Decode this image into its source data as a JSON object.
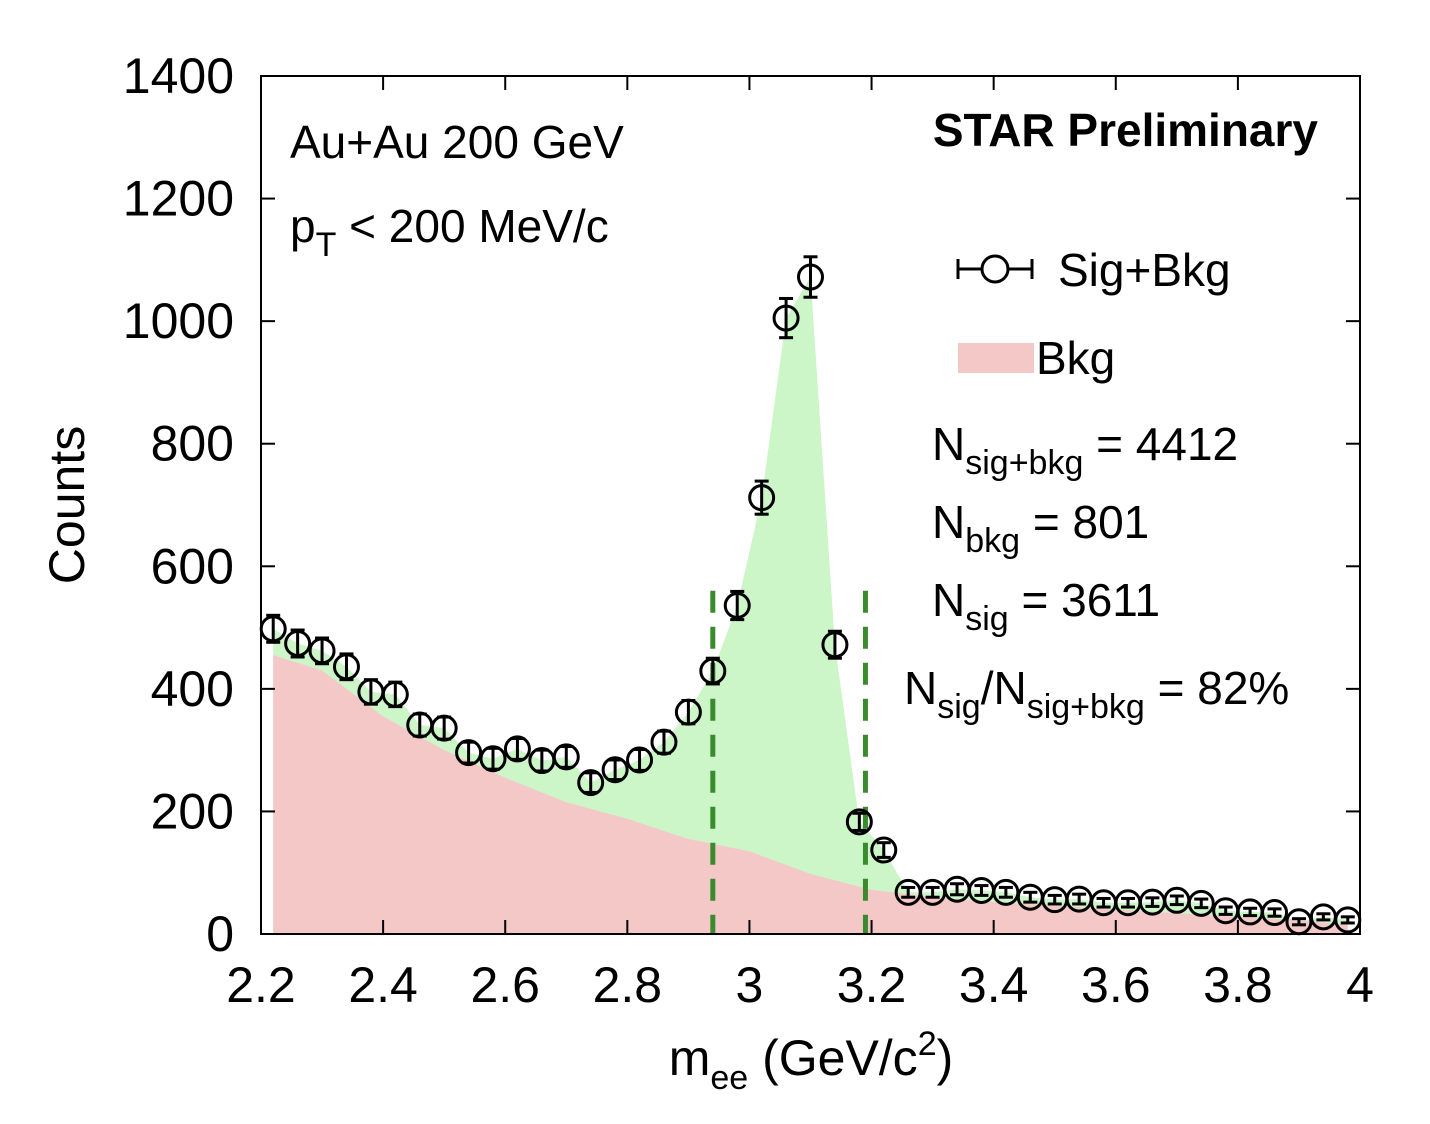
{
  "chart_data": {
    "type": "scatter",
    "xlabel": {
      "main": "m",
      "sub": "ee",
      "rest": " (GeV/c",
      "sup": "2",
      "end": ")"
    },
    "ylabel": "Counts",
    "xlim": [
      2.2,
      4.0
    ],
    "ylim": [
      0,
      1400
    ],
    "xticks": [
      "2.2",
      "2.4",
      "2.6",
      "2.8",
      "3",
      "3.2",
      "3.4",
      "3.6",
      "3.8",
      "4"
    ],
    "xtick_values": [
      2.2,
      2.4,
      2.6,
      2.8,
      3.0,
      3.2,
      3.4,
      3.6,
      3.8,
      4.0
    ],
    "yticks": [
      "0",
      "200",
      "400",
      "600",
      "800",
      "1000",
      "1200",
      "1400"
    ],
    "ytick_values": [
      0,
      200,
      400,
      600,
      800,
      1000,
      1200,
      1400
    ],
    "annotations": {
      "collision": "Au+Au 200 GeV",
      "pt_main": "p",
      "pt_sub": "T",
      "pt_rest": " < 200 MeV/c",
      "preliminary": "STAR Preliminary",
      "n_sigbkg_main": "N",
      "n_sigbkg_sub": "sig+bkg",
      "n_sigbkg_rest": " = 4412",
      "n_bkg_main": "N",
      "n_bkg_sub": "bkg",
      "n_bkg_rest": " = 801",
      "n_sig_main": "N",
      "n_sig_sub": "sig",
      "n_sig_rest": " = 3611",
      "ratio_main1": "N",
      "ratio_sub1": "sig",
      "ratio_mid": "/N",
      "ratio_sub2": "sig+bkg",
      "ratio_rest": " = 82%"
    },
    "legend": {
      "placement": "top-right",
      "entries": [
        "Sig+Bkg",
        "Bkg"
      ]
    },
    "colors": {
      "signal_fill": "#ccf5c8",
      "background_fill": "#f5c8c8",
      "markers": "#000000",
      "window_lines": "#3a8a2e"
    },
    "mass_window": [
      2.94,
      3.19
    ],
    "series": [
      {
        "name": "Sig+Bkg",
        "style": "open-circle-with-error-bars",
        "x": [
          2.22,
          2.26,
          2.3,
          2.34,
          2.38,
          2.42,
          2.46,
          2.5,
          2.54,
          2.58,
          2.62,
          2.66,
          2.7,
          2.74,
          2.78,
          2.82,
          2.86,
          2.9,
          2.94,
          2.98,
          3.02,
          3.06,
          3.1,
          3.14,
          3.18,
          3.22,
          3.26,
          3.3,
          3.34,
          3.38,
          3.42,
          3.46,
          3.5,
          3.54,
          3.58,
          3.62,
          3.66,
          3.7,
          3.74,
          3.78,
          3.82,
          3.86,
          3.9,
          3.94,
          3.98
        ],
        "y": [
          498,
          474,
          462,
          436,
          395,
          391,
          341,
          336,
          296,
          286,
          302,
          283,
          289,
          247,
          268,
          284,
          313,
          362,
          429,
          536,
          712,
          1005,
          1072,
          472,
          183,
          137,
          68,
          68,
          73,
          71,
          68,
          60,
          56,
          57,
          51,
          51,
          52,
          55,
          50,
          38,
          36,
          35,
          20,
          28,
          23
        ],
        "yerr": [
          22,
          22,
          21,
          21,
          20,
          20,
          18,
          18,
          17,
          17,
          17,
          17,
          17,
          16,
          16,
          17,
          18,
          19,
          21,
          23,
          27,
          32,
          33,
          22,
          14,
          12,
          8,
          8,
          9,
          8,
          8,
          8,
          7,
          8,
          7,
          7,
          7,
          7,
          7,
          6,
          6,
          6,
          5,
          5,
          5
        ]
      },
      {
        "name": "Bkg",
        "style": "filled-area",
        "x": [
          2.22,
          2.3,
          2.4,
          2.5,
          2.6,
          2.7,
          2.8,
          2.9,
          3.0,
          3.1,
          3.2,
          3.3,
          3.4,
          3.5,
          3.6,
          3.7,
          3.8,
          3.9,
          3.98
        ],
        "y": [
          455,
          430,
          355,
          300,
          255,
          215,
          188,
          155,
          135,
          98,
          72,
          60,
          52,
          46,
          40,
          34,
          28,
          22,
          15
        ]
      }
    ]
  }
}
